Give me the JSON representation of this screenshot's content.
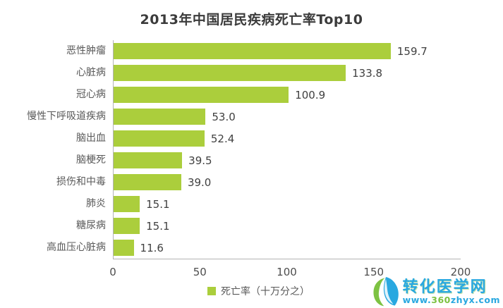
{
  "title": "2013年中国居民疾病死亡率Top10",
  "chart_data": {
    "type": "bar",
    "orientation": "horizontal",
    "title": "2013年中国居民疾病死亡率Top10",
    "categories": [
      "恶性肿瘤",
      "心脏病",
      "冠心病",
      "慢性下呼吸道疾病",
      "脑出血",
      "脑梗死",
      "损伤和中毒",
      "肺炎",
      "糖尿病",
      "高血压心脏病"
    ],
    "values": [
      159.7,
      133.8,
      100.9,
      53.0,
      52.4,
      39.5,
      39.0,
      15.1,
      15.1,
      11.6
    ],
    "value_labels": [
      "159.7",
      "133.8",
      "100.9",
      "53.0",
      "52.4",
      "39.5",
      "39.0",
      "15.1",
      "15.1",
      "11.6"
    ],
    "xlim": [
      0,
      200
    ],
    "x_ticks": [
      "0",
      "50",
      "100",
      "150",
      "200"
    ],
    "legend": "死亡率（十万分之）",
    "legend_position": "bottom-center",
    "grid": "off",
    "bar_color": "#abce3c",
    "axis_color": "#b3b3b3"
  },
  "legend_label": "死亡率（十万分之）",
  "watermark": {
    "site_name": "转化医学网",
    "url_parts": [
      "www.",
      "360",
      "zhyx.com"
    ],
    "brand_blue": "#29a8e0",
    "brand_green": "#7dc242"
  }
}
